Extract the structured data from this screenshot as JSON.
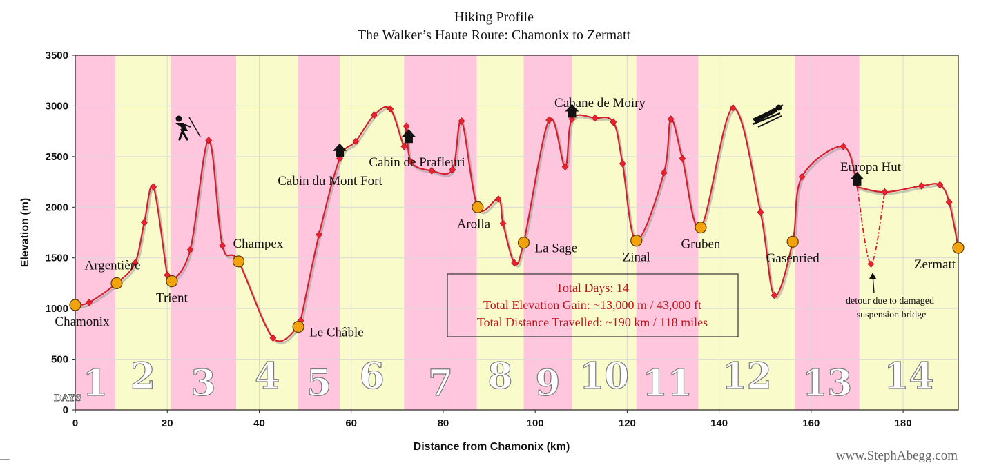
{
  "chart_data": {
    "type": "line",
    "title": "Hiking Profile",
    "subtitle": "The Walker’s Haute Route: Chamonix to Zermatt",
    "xlabel": "Distance from Chamonix (km)",
    "ylabel": "Elevation (m)",
    "xlim": [
      0,
      192
    ],
    "ylim": [
      0,
      3500
    ],
    "x_ticks": [
      0,
      20,
      40,
      60,
      80,
      100,
      120,
      140,
      160,
      180
    ],
    "y_ticks": [
      0,
      500,
      1000,
      1500,
      2000,
      2500,
      3000,
      3500
    ],
    "grid": true,
    "days_label": "DAYS",
    "colors": {
      "line": "#d4202e",
      "marker": "#e8232f",
      "shadow": "#9a9a9a",
      "town": "#f2a20c",
      "band_pink": "#ffc6de",
      "band_yellow": "#f9fbca",
      "hut": "#111111"
    },
    "day_bands": [
      {
        "day": "1",
        "start": 0,
        "end": 8.7,
        "color": "pink"
      },
      {
        "day": "2",
        "start": 8.7,
        "end": 20.7,
        "color": "yellow"
      },
      {
        "day": "3",
        "start": 20.7,
        "end": 35.0,
        "color": "pink"
      },
      {
        "day": "4",
        "start": 35.0,
        "end": 48.5,
        "color": "yellow"
      },
      {
        "day": "5",
        "start": 48.5,
        "end": 57.5,
        "color": "pink"
      },
      {
        "day": "6",
        "start": 57.5,
        "end": 71.5,
        "color": "yellow"
      },
      {
        "day": "7",
        "start": 71.5,
        "end": 87.3,
        "color": "pink"
      },
      {
        "day": "8",
        "start": 87.3,
        "end": 97.5,
        "color": "yellow"
      },
      {
        "day": "9",
        "start": 97.5,
        "end": 108.0,
        "color": "pink"
      },
      {
        "day": "10",
        "start": 108.0,
        "end": 122.0,
        "color": "yellow"
      },
      {
        "day": "11",
        "start": 122.0,
        "end": 135.5,
        "color": "pink"
      },
      {
        "day": "12",
        "start": 135.5,
        "end": 156.5,
        "color": "yellow"
      },
      {
        "day": "13",
        "start": 156.5,
        "end": 170.5,
        "color": "pink"
      },
      {
        "day": "14",
        "start": 170.5,
        "end": 192,
        "color": "yellow"
      }
    ],
    "series": [
      {
        "name": "Main route",
        "x": [
          0,
          3,
          9,
          13,
          15,
          17,
          20,
          21,
          25,
          29,
          32,
          35.5,
          43,
          48.5,
          49,
          53,
          57.5,
          61,
          65,
          68.5,
          71.5,
          72,
          73,
          77.5,
          82,
          84,
          87.5,
          92,
          93,
          95.5,
          97.5,
          103,
          106.5,
          108,
          113,
          117,
          119,
          122,
          128,
          129.5,
          132,
          136,
          143,
          149,
          152,
          156,
          158,
          167,
          170
        ],
        "y": [
          1035,
          1060,
          1250,
          1450,
          1850,
          2200,
          1330,
          1270,
          1580,
          2660,
          1620,
          1465,
          710,
          820,
          880,
          1730,
          2480,
          2650,
          2910,
          2970,
          2600,
          2800,
          2450,
          2360,
          2370,
          2850,
          2000,
          2080,
          1840,
          1450,
          1650,
          2860,
          2400,
          2870,
          2880,
          2840,
          2430,
          1670,
          2340,
          2870,
          2480,
          1800,
          2980,
          1950,
          1130,
          1660,
          2300,
          2600,
          2200
        ]
      },
      {
        "name": "Final stage",
        "x": [
          170,
          176,
          184,
          188,
          190,
          192
        ],
        "y": [
          2200,
          2150,
          2210,
          2220,
          2050,
          1600
        ]
      },
      {
        "name": "Detour",
        "style": "dash-dot",
        "x": [
          170,
          173,
          176
        ],
        "y": [
          2200,
          1440,
          2150
        ]
      }
    ],
    "towns": [
      {
        "name": "Chamonix",
        "x": 0,
        "y": 1035,
        "label_pos": "below"
      },
      {
        "name": "Argentière",
        "x": 9,
        "y": 1250,
        "label_pos": "above"
      },
      {
        "name": "Trient",
        "x": 21,
        "y": 1270,
        "label_pos": "below"
      },
      {
        "name": "Champex",
        "x": 35.5,
        "y": 1465,
        "label_pos": "above-right"
      },
      {
        "name": "Le Châble",
        "x": 48.5,
        "y": 820,
        "label_pos": "right"
      },
      {
        "name": "Arolla",
        "x": 87.5,
        "y": 2000,
        "label_pos": "below-left"
      },
      {
        "name": "La Sage",
        "x": 97.5,
        "y": 1650,
        "label_pos": "right"
      },
      {
        "name": "Zinal",
        "x": 122,
        "y": 1670,
        "label_pos": "below"
      },
      {
        "name": "Gruben",
        "x": 136,
        "y": 1800,
        "label_pos": "below"
      },
      {
        "name": "Gasenried",
        "x": 156,
        "y": 1660,
        "label_pos": "below"
      },
      {
        "name": "Zermatt",
        "x": 192,
        "y": 1600,
        "label_pos": "below-left"
      }
    ],
    "huts": [
      {
        "name": "Cabin du Mont Fort",
        "x": 57.5,
        "y": 2480
      },
      {
        "name": "Cabin de Prafleuri",
        "x": 72.5,
        "y": 2620
      },
      {
        "name": "Cabane de Moiry",
        "x": 108,
        "y": 2870
      },
      {
        "name": "Europa Hut",
        "x": 170,
        "y": 2200
      }
    ],
    "summary": {
      "total_days": "Total Days: 14",
      "elevation_gain": "Total Elevation Gain: ~13,000 m / 43,000 ft",
      "distance": "Total Distance Travelled: ~190 km / 118 miles"
    },
    "annotation": {
      "line1": "detour due to damaged",
      "line2": "suspension bridge"
    },
    "credit": "www.StephAbegg.com"
  }
}
